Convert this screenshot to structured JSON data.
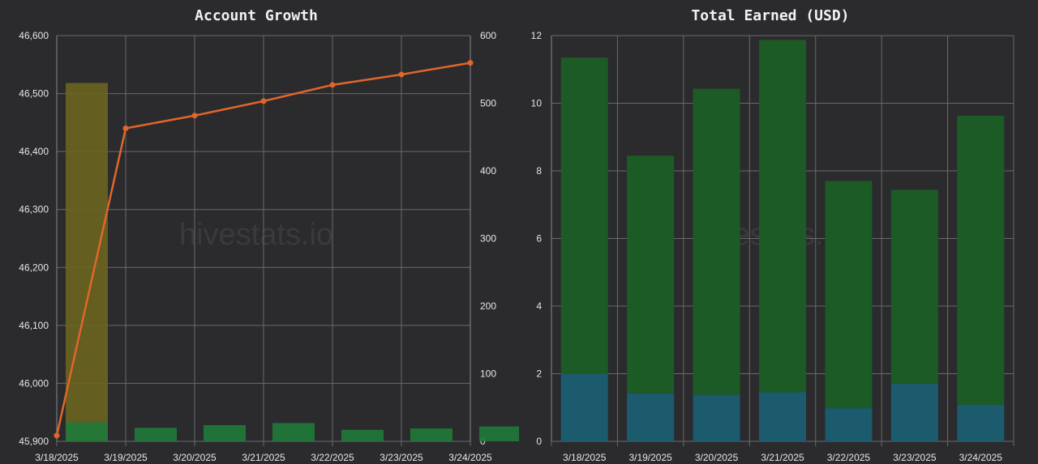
{
  "watermark": "hivestats.io",
  "chart_data": [
    {
      "type": "bar+line",
      "title": "Account Growth",
      "categories": [
        "3/18/2025",
        "3/19/2025",
        "3/20/2025",
        "3/21/2025",
        "3/22/2025",
        "3/23/2025",
        "3/24/2025"
      ],
      "y_left": {
        "lim": [
          45900,
          46600
        ],
        "ticks": [
          45900,
          46000,
          46100,
          46200,
          46300,
          46400,
          46500,
          46600
        ],
        "tick_labels": [
          "45,900",
          "46,000",
          "46,100",
          "46,200",
          "46,300",
          "46,400",
          "46,500",
          "46,600"
        ]
      },
      "y_right": {
        "lim": [
          0,
          600
        ],
        "ticks": [
          0,
          100,
          200,
          300,
          400,
          500,
          600
        ],
        "tick_labels": [
          "0",
          "100",
          "200",
          "300",
          "400",
          "500",
          "600"
        ]
      },
      "series": [
        {
          "kind": "line",
          "axis": "left",
          "color": "#e0662a",
          "values": [
            45910,
            46440,
            46462,
            46487,
            46515,
            46533,
            46553
          ]
        },
        {
          "kind": "bar",
          "axis": "right",
          "color": "#6b6420",
          "values": [
            530,
            0,
            0,
            0,
            0,
            0,
            0
          ]
        },
        {
          "kind": "bar",
          "axis": "right",
          "color": "#1f7a3a",
          "values": [
            28,
            20,
            24,
            27,
            17,
            19,
            22
          ]
        }
      ],
      "grid": true
    },
    {
      "type": "stacked_bar",
      "title": "Total Earned (USD)",
      "categories": [
        "3/18/2025",
        "3/19/2025",
        "3/20/2025",
        "3/21/2025",
        "3/22/2025",
        "3/23/2025",
        "3/24/2025"
      ],
      "y": {
        "lim": [
          0,
          12
        ],
        "ticks": [
          0,
          2,
          4,
          6,
          8,
          10,
          12
        ],
        "tick_labels": [
          "0",
          "2",
          "4",
          "6",
          "8",
          "10",
          "12"
        ]
      },
      "series": [
        {
          "color": "#1c5a6e",
          "values": [
            2.0,
            1.42,
            1.38,
            1.45,
            0.98,
            1.7,
            1.08
          ]
        },
        {
          "color": "#1c5a26",
          "values": [
            9.35,
            7.03,
            9.05,
            10.42,
            6.72,
            5.74,
            8.55
          ]
        }
      ],
      "grid": true
    }
  ]
}
